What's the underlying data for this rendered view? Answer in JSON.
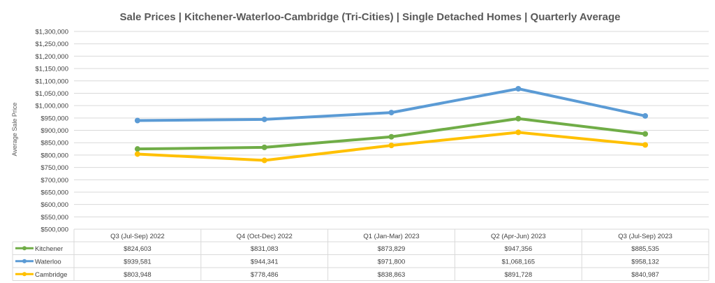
{
  "chart_data": {
    "type": "line",
    "title": "Sale Prices | Kitchener-Waterloo-Cambridge (Tri-Cities) | Single Detached Homes | Quarterly Average",
    "ylabel": "Average Sale Price",
    "ylim": [
      500000,
      1300000
    ],
    "yticks": [
      "$500,000",
      "$550,000",
      "$600,000",
      "$650,000",
      "$700,000",
      "$750,000",
      "$800,000",
      "$850,000",
      "$900,000",
      "$950,000",
      "$1,000,000",
      "$1,050,000",
      "$1,100,000",
      "$1,150,000",
      "$1,200,000",
      "$1,250,000",
      "$1,300,000"
    ],
    "categories": [
      "Q3 (Jul-Sep) 2022",
      "Q4 (Oct-Dec) 2022",
      "Q1 (Jan-Mar) 2023",
      "Q2 (Apr-Jun) 2023",
      "Q3 (Jul-Sep) 2023"
    ],
    "grid": true,
    "legend": "data-table",
    "series": [
      {
        "name": "Kitchener",
        "color": "#70ad47",
        "values": [
          824603,
          831083,
          873829,
          947356,
          885535
        ],
        "labels": [
          "$824,603",
          "$831,083",
          "$873,829",
          "$947,356",
          "$885,535"
        ]
      },
      {
        "name": "Waterloo",
        "color": "#5b9bd5",
        "values": [
          939581,
          944341,
          971800,
          1068165,
          958132
        ],
        "labels": [
          "$939,581",
          "$944,341",
          "$971,800",
          "$1,068,165",
          "$958,132"
        ]
      },
      {
        "name": "Cambridge",
        "color": "#ffc000",
        "values": [
          803948,
          778486,
          838863,
          891728,
          840987
        ],
        "labels": [
          "$803,948",
          "$778,486",
          "$838,863",
          "$891,728",
          "$840,987"
        ]
      }
    ]
  }
}
